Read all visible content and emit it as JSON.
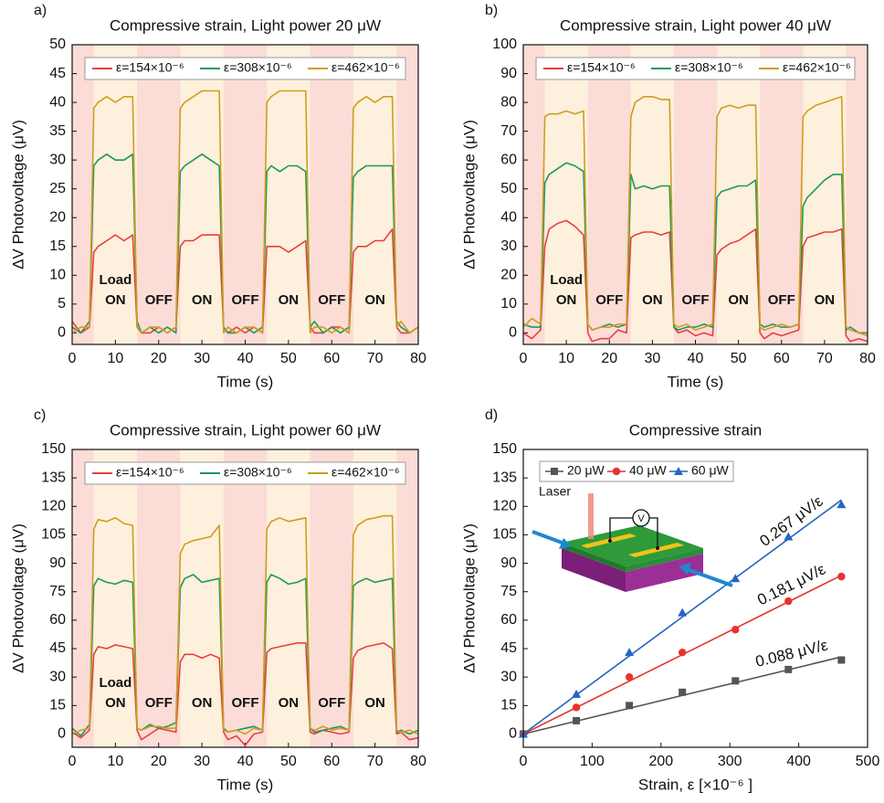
{
  "chart_data": [
    {
      "type": "line",
      "panel_label": "a)",
      "title": "Compressive strain, Light power 20 μW",
      "xlabel": "Time (s)",
      "ylabel": "ΔV Photovoltage (μV)",
      "x": [
        0,
        2,
        4,
        5,
        6,
        8,
        10,
        12,
        14,
        15,
        16,
        18,
        20,
        22,
        24,
        25,
        26,
        28,
        30,
        32,
        34,
        35,
        36,
        38,
        40,
        42,
        44,
        45,
        46,
        48,
        50,
        52,
        54,
        55,
        56,
        58,
        60,
        62,
        64,
        65,
        66,
        68,
        70,
        72,
        74,
        75,
        76,
        78,
        80
      ],
      "xlim": [
        0,
        80
      ],
      "xticks": [
        0,
        10,
        20,
        30,
        40,
        50,
        60,
        70,
        80
      ],
      "ylim": [
        -2,
        50
      ],
      "yticks": [
        0,
        5,
        10,
        15,
        20,
        25,
        30,
        35,
        40,
        45,
        50
      ],
      "background_color": "#fbdcd7",
      "on_color": "#fdf0dc",
      "on_intervals": [
        [
          5,
          15
        ],
        [
          25,
          35
        ],
        [
          45,
          55
        ],
        [
          65,
          75
        ]
      ],
      "on_labels": [
        [
          "Load",
          "ON"
        ],
        [
          "ON"
        ],
        [
          "ON"
        ],
        [
          "ON"
        ]
      ],
      "off_labels": [
        [
          "OFF"
        ],
        [
          "OFF"
        ],
        [
          "OFF"
        ]
      ],
      "legend": "top",
      "series": [
        {
          "name": "ε=154×10⁻⁶",
          "color": "#e8413c",
          "values": [
            2,
            0,
            1,
            14,
            15,
            16,
            17,
            16,
            17,
            1,
            0,
            0,
            1,
            0,
            1,
            15,
            16,
            16,
            17,
            17,
            17,
            1,
            0,
            1,
            0,
            1,
            0,
            15,
            15,
            15,
            14,
            15,
            16,
            1,
            0,
            0,
            1,
            1,
            0,
            14,
            15,
            15,
            16,
            16,
            18,
            1,
            0,
            0,
            1
          ]
        },
        {
          "name": "ε=308×10⁻⁶",
          "color": "#1a9a5c",
          "values": [
            1,
            0,
            2,
            29,
            30,
            31,
            30,
            30,
            31,
            2,
            0,
            1,
            0,
            1,
            0,
            28,
            29,
            30,
            31,
            30,
            29,
            1,
            0,
            0,
            1,
            0,
            1,
            28,
            29,
            28,
            29,
            29,
            28,
            1,
            2,
            0,
            1,
            0,
            1,
            27,
            28,
            29,
            29,
            29,
            29,
            2,
            1,
            0,
            1
          ]
        },
        {
          "name": "ε=462×10⁻⁶",
          "color": "#cf9d1e",
          "values": [
            0,
            1,
            1,
            39,
            40,
            41,
            40,
            41,
            41,
            1,
            0,
            1,
            1,
            0,
            1,
            39,
            40,
            41,
            42,
            42,
            42,
            0,
            1,
            0,
            1,
            1,
            0,
            40,
            41,
            42,
            42,
            42,
            42,
            0,
            1,
            1,
            0,
            1,
            0,
            39,
            40,
            41,
            40,
            41,
            41,
            1,
            2,
            0,
            1
          ]
        }
      ]
    },
    {
      "type": "line",
      "panel_label": "b)",
      "title": "Compressive strain, Light power 40 μW",
      "xlabel": "Time (s)",
      "ylabel": "ΔV Photovoltage (μV)",
      "x": [
        0,
        2,
        4,
        5,
        6,
        8,
        10,
        12,
        14,
        15,
        16,
        18,
        20,
        22,
        24,
        25,
        26,
        28,
        30,
        32,
        34,
        35,
        36,
        38,
        40,
        42,
        44,
        45,
        46,
        48,
        50,
        52,
        54,
        55,
        56,
        58,
        60,
        62,
        64,
        65,
        66,
        68,
        70,
        72,
        74,
        75,
        76,
        78,
        80
      ],
      "xlim": [
        0,
        80
      ],
      "xticks": [
        0,
        10,
        20,
        30,
        40,
        50,
        60,
        70,
        80
      ],
      "ylim": [
        -4,
        100
      ],
      "yticks": [
        0,
        10,
        20,
        30,
        40,
        50,
        60,
        70,
        80,
        90,
        100
      ],
      "background_color": "#fbdcd7",
      "on_color": "#fdf0dc",
      "on_intervals": [
        [
          5,
          15
        ],
        [
          25,
          35
        ],
        [
          45,
          55
        ],
        [
          65,
          75
        ]
      ],
      "on_labels": [
        [
          "Load",
          "ON"
        ],
        [
          "ON"
        ],
        [
          "ON"
        ],
        [
          "ON"
        ]
      ],
      "off_labels": [
        [
          "OFF"
        ],
        [
          "OFF"
        ],
        [
          "OFF"
        ]
      ],
      "legend": "top",
      "series": [
        {
          "name": "ε=154×10⁻⁶",
          "color": "#e8413c",
          "values": [
            0,
            -2,
            1,
            30,
            36,
            38,
            39,
            37,
            34,
            0,
            -3,
            -2,
            -2,
            1,
            0,
            33,
            34,
            35,
            35,
            34,
            35,
            2,
            0,
            1,
            -1,
            0,
            -1,
            27,
            29,
            31,
            32,
            34,
            36,
            0,
            -2,
            0,
            -1,
            0,
            1,
            30,
            33,
            34,
            35,
            35,
            36,
            -1,
            -3,
            -2,
            -3
          ]
        },
        {
          "name": "ε=308×10⁻⁶",
          "color": "#1a9a5c",
          "values": [
            3,
            2,
            2,
            52,
            55,
            57,
            59,
            58,
            56,
            3,
            1,
            2,
            3,
            2,
            3,
            55,
            50,
            51,
            50,
            51,
            51,
            2,
            1,
            2,
            2,
            3,
            2,
            47,
            49,
            50,
            51,
            51,
            53,
            3,
            2,
            3,
            2,
            2,
            3,
            44,
            47,
            50,
            53,
            55,
            55,
            1,
            2,
            0,
            0
          ]
        },
        {
          "name": "ε=462×10⁻⁶",
          "color": "#cf9d1e",
          "values": [
            2,
            5,
            3,
            75,
            76,
            76,
            77,
            76,
            77,
            3,
            1,
            2,
            2,
            3,
            3,
            75,
            80,
            82,
            82,
            81,
            81,
            3,
            2,
            3,
            1,
            2,
            3,
            75,
            78,
            79,
            78,
            79,
            79,
            2,
            1,
            2,
            3,
            2,
            3,
            75,
            77,
            79,
            80,
            81,
            82,
            2,
            1,
            0,
            -1
          ]
        }
      ]
    },
    {
      "type": "line",
      "panel_label": "c)",
      "title": "Compressive strain, Light power 60 μW",
      "xlabel": "Time (s)",
      "ylabel": "ΔV Photovoltage (μV)",
      "x": [
        0,
        2,
        4,
        5,
        6,
        8,
        10,
        12,
        14,
        15,
        16,
        18,
        20,
        22,
        24,
        25,
        26,
        28,
        30,
        32,
        34,
        35,
        36,
        38,
        40,
        42,
        44,
        45,
        46,
        48,
        50,
        52,
        54,
        55,
        56,
        58,
        60,
        62,
        64,
        65,
        66,
        68,
        70,
        72,
        74,
        75,
        76,
        78,
        80
      ],
      "xlim": [
        0,
        80
      ],
      "xticks": [
        0,
        10,
        20,
        30,
        40,
        50,
        60,
        70,
        80
      ],
      "ylim": [
        -7,
        150
      ],
      "yticks": [
        0,
        15,
        30,
        45,
        60,
        75,
        90,
        105,
        120,
        135,
        150
      ],
      "background_color": "#fbdcd7",
      "on_color": "#fdf0dc",
      "on_intervals": [
        [
          5,
          15
        ],
        [
          25,
          35
        ],
        [
          45,
          55
        ],
        [
          65,
          75
        ]
      ],
      "on_labels": [
        [
          "Load",
          "ON"
        ],
        [
          "ON"
        ],
        [
          "ON"
        ],
        [
          "ON"
        ]
      ],
      "off_labels": [
        [
          "OFF"
        ],
        [
          "OFF"
        ],
        [
          "OFF"
        ]
      ],
      "legend": "top",
      "series": [
        {
          "name": "ε=154×10⁻⁶",
          "color": "#e8413c",
          "values": [
            1,
            -2,
            2,
            42,
            46,
            45,
            47,
            46,
            45,
            2,
            -3,
            0,
            3,
            2,
            1,
            38,
            42,
            42,
            40,
            42,
            40,
            1,
            -3,
            -1,
            -6,
            0,
            1,
            43,
            45,
            46,
            47,
            48,
            48,
            1,
            0,
            2,
            1,
            0,
            1,
            40,
            44,
            46,
            47,
            48,
            45,
            0,
            1,
            -3,
            -2
          ]
        },
        {
          "name": "ε=308×10⁻⁶",
          "color": "#1a9a5c",
          "values": [
            3,
            -1,
            5,
            78,
            82,
            80,
            79,
            81,
            80,
            3,
            2,
            5,
            3,
            4,
            6,
            77,
            82,
            84,
            80,
            81,
            82,
            3,
            1,
            2,
            3,
            4,
            2,
            80,
            84,
            82,
            79,
            80,
            82,
            3,
            1,
            2,
            3,
            4,
            2,
            78,
            80,
            82,
            80,
            81,
            82,
            1,
            2,
            0,
            2
          ]
        },
        {
          "name": "ε=462×10⁻⁶",
          "color": "#cf9d1e",
          "values": [
            0,
            2,
            3,
            108,
            113,
            112,
            114,
            111,
            110,
            3,
            2,
            4,
            4,
            3,
            3,
            95,
            100,
            102,
            103,
            104,
            110,
            2,
            1,
            2,
            0,
            3,
            2,
            108,
            112,
            114,
            112,
            113,
            114,
            3,
            2,
            4,
            2,
            3,
            2,
            105,
            110,
            113,
            114,
            115,
            115,
            2,
            1,
            2,
            0
          ]
        }
      ]
    },
    {
      "type": "scatter",
      "panel_label": "d)",
      "title": "Compressive strain",
      "xlabel": "Strain, ε [×10⁻⁶ ]",
      "ylabel": "ΔV Photovoltage (μV)",
      "x": [
        0,
        77,
        154,
        231,
        308,
        385,
        462
      ],
      "xlim": [
        0,
        500
      ],
      "xticks": [
        0,
        100,
        200,
        300,
        400,
        500
      ],
      "ylim": [
        -7,
        150
      ],
      "yticks": [
        0,
        15,
        30,
        45,
        60,
        75,
        90,
        105,
        120,
        135,
        150
      ],
      "legend": "top-left",
      "inset": {
        "laser": "Laser",
        "meter": "V"
      },
      "series": [
        {
          "name": "20 μW",
          "color": "#555555",
          "marker": "square",
          "values": [
            0,
            7,
            15,
            22,
            28,
            34,
            39
          ],
          "slope": 0.088,
          "slope_label": "0.088 μV/ε"
        },
        {
          "name": "40 μW",
          "color": "#e8322f",
          "marker": "circle",
          "values": [
            0,
            14,
            30,
            43,
            55,
            70,
            83
          ],
          "slope": 0.181,
          "slope_label": "0.181 μV/ε"
        },
        {
          "name": "60 μW",
          "color": "#2566c0",
          "marker": "triangle",
          "values": [
            0,
            21,
            43,
            64,
            82,
            104,
            121
          ],
          "slope": 0.267,
          "slope_label": "0.267 μV/ε"
        }
      ]
    }
  ]
}
